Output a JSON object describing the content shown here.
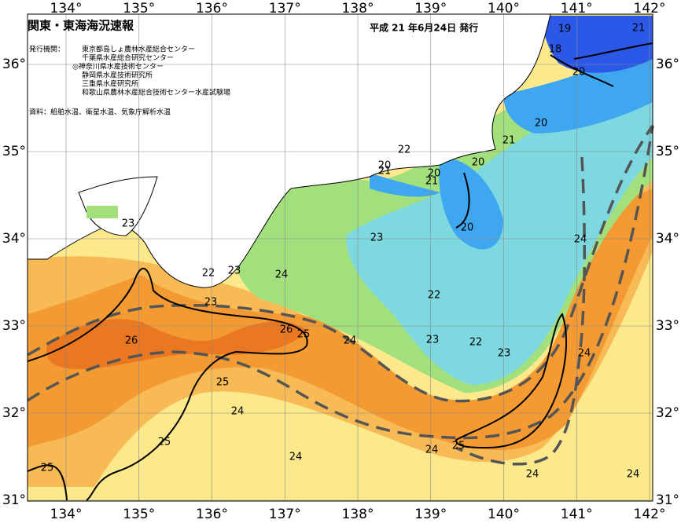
{
  "header": {
    "title": "関東・東海海況速報",
    "date": "平成 21 年6月24日 発行"
  },
  "issuers": {
    "label": "発行機関：",
    "list": [
      "東京都島しょ農林水産総合センター",
      "千葉県水産総合研究センター",
      "◎神奈川県水産技術センター",
      "静岡県水産技術研究所",
      "三重県水産研究所",
      "和歌山県農林水産総合技術センター水産試験場"
    ]
  },
  "source": "資料：船舶水温、衛星水温、気象庁解析水温",
  "lon_labels": [
    "134°",
    "135°",
    "136°",
    "137°",
    "138°",
    "139°",
    "140°",
    "141°",
    "142°"
  ],
  "lat_labels": [
    "36°",
    "35°",
    "34°",
    "33°",
    "32°",
    "31°"
  ],
  "contour_labels": [
    "19",
    "21",
    "18",
    "20",
    "20",
    "21",
    "22",
    "20",
    "21",
    "20",
    "21",
    "20",
    "20",
    "23",
    "23",
    "24",
    "22",
    "23",
    "24",
    "22",
    "23",
    "26",
    "26",
    "25",
    "24",
    "23",
    "22",
    "23",
    "24",
    "25",
    "24",
    "25",
    "24",
    "24",
    "25",
    "25",
    "24",
    "24"
  ]
}
